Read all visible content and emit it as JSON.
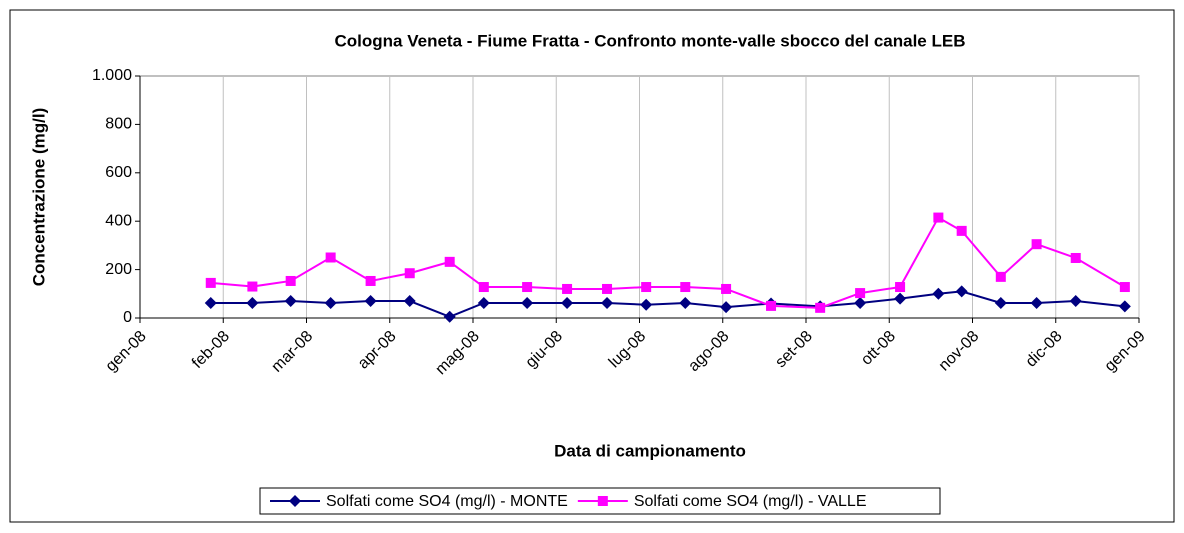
{
  "chart_data": {
    "type": "line",
    "title": "Cologna Veneta - Fiume Fratta - Confronto monte-valle sbocco del canale LEB",
    "xlabel": "Data di campionamento",
    "ylabel": "Concentrazione (mg/l)",
    "x": [
      0.85,
      1.35,
      1.81,
      2.29,
      2.77,
      3.24,
      3.72,
      4.13,
      4.65,
      5.13,
      5.61,
      6.08,
      6.55,
      7.04,
      7.58,
      8.17,
      8.65,
      9.13,
      9.59,
      9.87,
      10.34,
      10.77,
      11.24,
      11.83
    ],
    "series": [
      {
        "name": "Solfati come SO4 (mg/l) - MONTE",
        "color": "#000080",
        "marker": "diamond",
        "values": [
          62,
          62,
          70,
          62,
          70,
          70,
          5,
          62,
          62,
          62,
          62,
          55,
          62,
          45,
          60,
          48,
          62,
          80,
          100,
          110,
          62,
          62,
          70,
          48
        ]
      },
      {
        "name": "Solfati come SO4 (mg/l) - VALLE",
        "color": "#ff00ff",
        "marker": "square",
        "values": [
          145,
          130,
          153,
          250,
          153,
          185,
          232,
          128,
          128,
          120,
          120,
          128,
          128,
          120,
          50,
          42,
          103,
          128,
          415,
          360,
          170,
          305,
          248,
          128
        ]
      }
    ],
    "xlim": [
      0,
      12
    ],
    "xticks": [
      {
        "value": 0,
        "label": "gen-08"
      },
      {
        "value": 1,
        "label": "feb-08"
      },
      {
        "value": 2,
        "label": "mar-08"
      },
      {
        "value": 3,
        "label": "apr-08"
      },
      {
        "value": 4,
        "label": "mag-08"
      },
      {
        "value": 5,
        "label": "giu-08"
      },
      {
        "value": 6,
        "label": "lug-08"
      },
      {
        "value": 7,
        "label": "ago-08"
      },
      {
        "value": 8,
        "label": "set-08"
      },
      {
        "value": 9,
        "label": "ott-08"
      },
      {
        "value": 10,
        "label": "nov-08"
      },
      {
        "value": 11,
        "label": "dic-08"
      },
      {
        "value": 12,
        "label": "gen-09"
      }
    ],
    "ylim": [
      0,
      1000
    ],
    "yticks": [
      0,
      200,
      400,
      600,
      800,
      {
        "value": 1000,
        "label": "1.000"
      }
    ],
    "grid": "x",
    "legend": "bottom"
  }
}
